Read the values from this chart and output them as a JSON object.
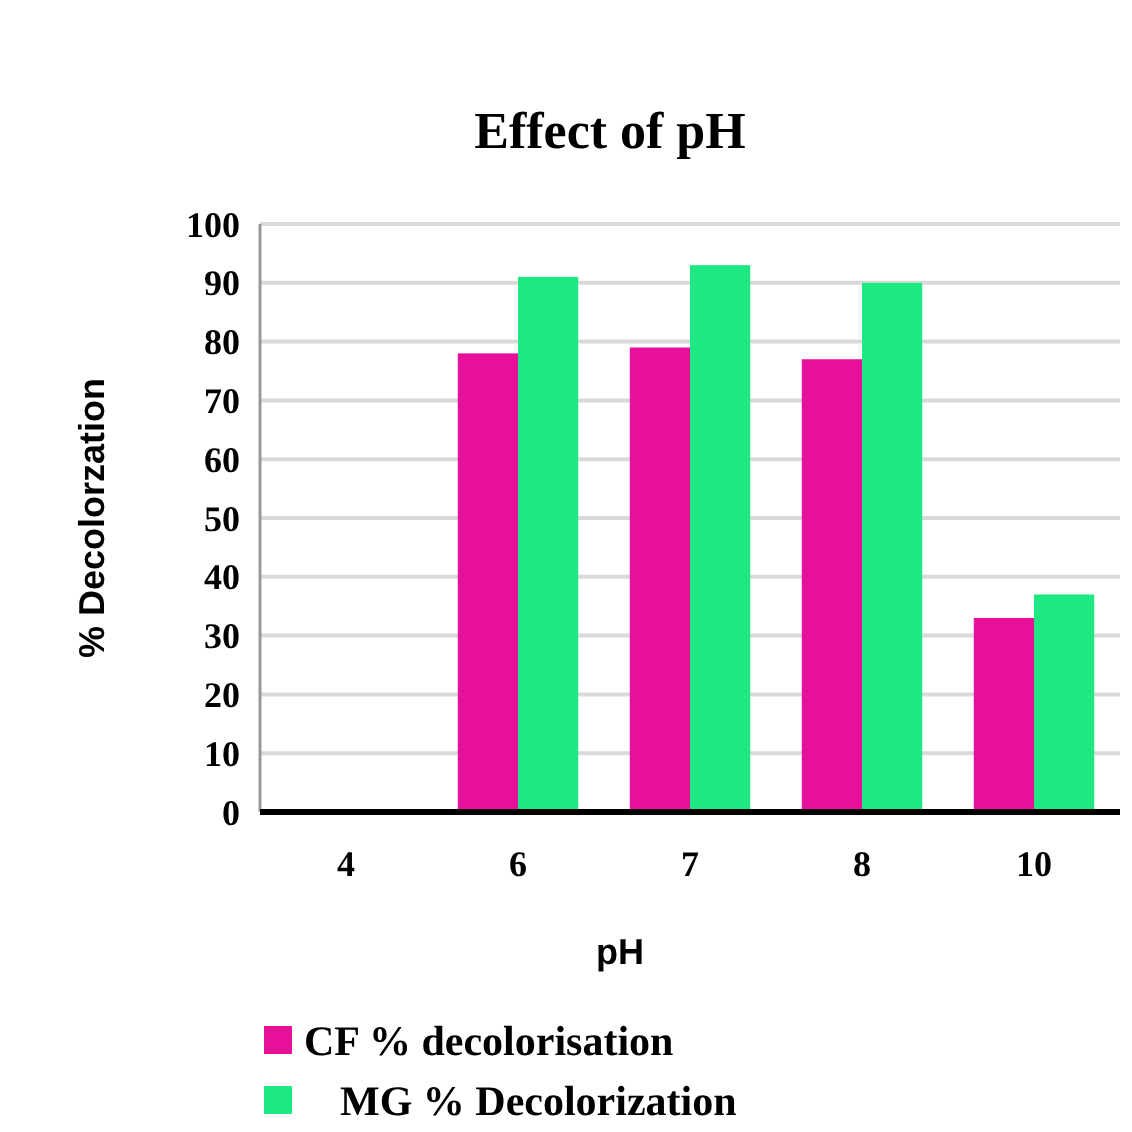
{
  "chart_data": {
    "type": "bar",
    "title": "Effect of pH",
    "xlabel": "pH",
    "ylabel": "% Decolorzation",
    "categories": [
      "4",
      "6",
      "7",
      "8",
      "10"
    ],
    "series": [
      {
        "name": "CF % decolorisation",
        "color": "#e6109a",
        "values": [
          0,
          78,
          79,
          77,
          33
        ]
      },
      {
        "name": "MG % Decolorization",
        "color": "#1de882",
        "values": [
          0,
          91,
          93,
          90,
          37
        ]
      }
    ],
    "ylim": [
      0,
      100
    ],
    "yticks": [
      0,
      10,
      20,
      30,
      40,
      50,
      60,
      70,
      80,
      90,
      100
    ],
    "grid": "y",
    "legend": "bottom"
  }
}
